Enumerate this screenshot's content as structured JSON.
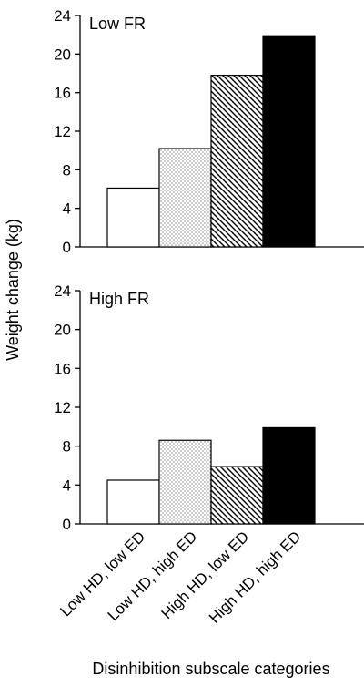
{
  "chart_data": {
    "type": "bar",
    "xlabel": "Disinhibition subscale categories",
    "ylabel": "Weight change (kg)",
    "categories": [
      "Low HD, low ED",
      "Low HD, high ED",
      "High HD, low ED",
      "High HD, high ED"
    ],
    "ylim": [
      0,
      24
    ],
    "yticks": [
      0,
      4,
      8,
      12,
      16,
      20,
      24
    ],
    "patterns": [
      "white",
      "dots",
      "diagonal-hatch",
      "solid-black"
    ],
    "panels": [
      {
        "title": "Low FR",
        "values": [
          6.1,
          10.2,
          17.8,
          21.9
        ]
      },
      {
        "title": "High FR",
        "values": [
          4.5,
          8.6,
          5.9,
          9.9
        ]
      }
    ]
  }
}
